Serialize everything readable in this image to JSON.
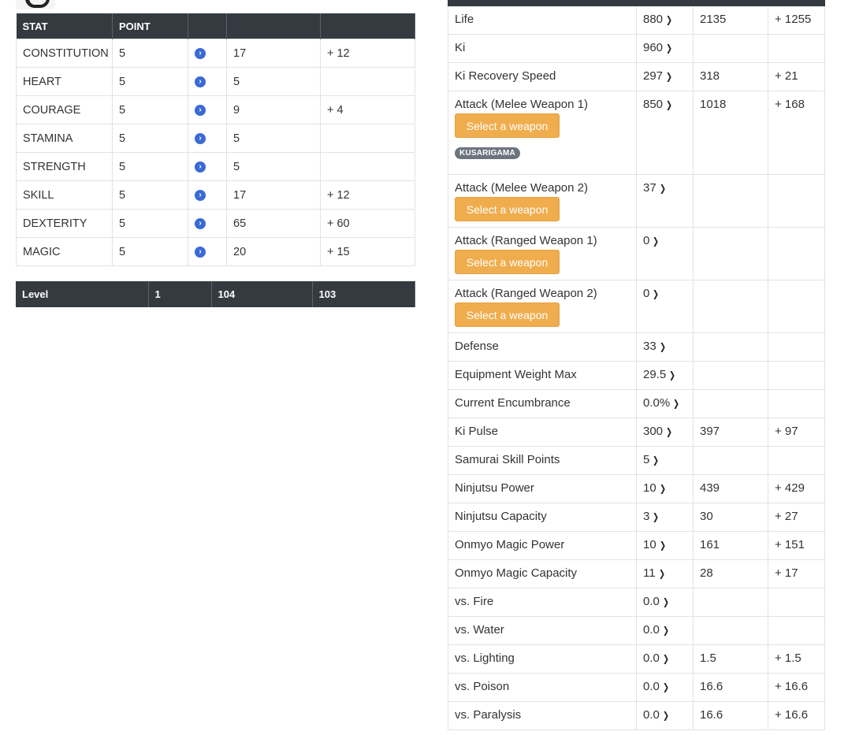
{
  "stats_table": {
    "headers": [
      "STAT",
      "POINT",
      "",
      "",
      ""
    ],
    "rows": [
      {
        "stat": "CONSTITUTION",
        "point": "5",
        "value": "17",
        "bonus": "+ 12"
      },
      {
        "stat": "HEART",
        "point": "5",
        "value": "5",
        "bonus": ""
      },
      {
        "stat": "COURAGE",
        "point": "5",
        "value": "9",
        "bonus": "+ 4"
      },
      {
        "stat": "STAMINA",
        "point": "5",
        "value": "5",
        "bonus": ""
      },
      {
        "stat": "STRENGTH",
        "point": "5",
        "value": "5",
        "bonus": ""
      },
      {
        "stat": "SKILL",
        "point": "5",
        "value": "17",
        "bonus": "+ 12"
      },
      {
        "stat": "DEXTERITY",
        "point": "5",
        "value": "65",
        "bonus": "+ 60"
      },
      {
        "stat": "MAGIC",
        "point": "5",
        "value": "20",
        "bonus": "+ 15"
      }
    ]
  },
  "level_row": {
    "label": "Level",
    "base": "1",
    "current": "104",
    "diff": "103"
  },
  "derived_table": {
    "rows": [
      {
        "label": "Life",
        "base": "880",
        "value": "2135",
        "bonus": "+ 1255"
      },
      {
        "label": "Ki",
        "base": "960",
        "value": "",
        "bonus": ""
      },
      {
        "label": "Ki Recovery Speed",
        "base": "297",
        "value": "318",
        "bonus": "+ 21"
      },
      {
        "label": "Attack (Melee Weapon 1)",
        "base": "850",
        "value": "1018",
        "bonus": "+ 168",
        "button": "Select a weapon",
        "badge": "KUSARIGAMA"
      },
      {
        "label": "Attack (Melee Weapon 2)",
        "base": "37",
        "value": "",
        "bonus": "",
        "button": "Select a weapon"
      },
      {
        "label": "Attack (Ranged Weapon 1)",
        "base": "0",
        "value": "",
        "bonus": "",
        "button": "Select a weapon"
      },
      {
        "label": "Attack (Ranged Weapon 2)",
        "base": "0",
        "value": "",
        "bonus": "",
        "button": "Select a weapon"
      },
      {
        "label": "Defense",
        "base": "33",
        "value": "",
        "bonus": ""
      },
      {
        "label": "Equipment Weight Max",
        "base": "29.5",
        "value": "",
        "bonus": ""
      },
      {
        "label": "Current Encumbrance",
        "base": "0.0%",
        "value": "",
        "bonus": ""
      },
      {
        "label": "Ki Pulse",
        "base": "300",
        "value": "397",
        "bonus": "+ 97"
      },
      {
        "label": "Samurai Skill Points",
        "base": "5",
        "value": "",
        "bonus": ""
      },
      {
        "label": "Ninjutsu Power",
        "base": "10",
        "value": "439",
        "bonus": "+ 429"
      },
      {
        "label": "Ninjutsu Capacity",
        "base": "3",
        "value": "30",
        "bonus": "+ 27"
      },
      {
        "label": "Onmyo Magic Power",
        "base": "10",
        "value": "161",
        "bonus": "+ 151"
      },
      {
        "label": "Onmyo Magic Capacity",
        "base": "11",
        "value": "28",
        "bonus": "+ 17"
      },
      {
        "label": "vs. Fire",
        "base": "0.0",
        "value": "",
        "bonus": ""
      },
      {
        "label": "vs. Water",
        "base": "0.0",
        "value": "",
        "bonus": ""
      },
      {
        "label": "vs. Lighting",
        "base": "0.0",
        "value": "1.5",
        "bonus": "+ 1.5"
      },
      {
        "label": "vs. Poison",
        "base": "0.0",
        "value": "16.6",
        "bonus": "+ 16.6"
      },
      {
        "label": "vs. Paralysis",
        "base": "0.0",
        "value": "16.6",
        "bonus": "+ 16.6"
      }
    ]
  },
  "icons": {
    "stat_arrow": "chevron-right-circle-icon",
    "derived_arrow": "chevron-right-icon"
  },
  "colors": {
    "header_bg": "#343a40",
    "accent_blue": "#3a6ad4",
    "button_orange": "#f0ad4e",
    "badge_gray": "#6c757d"
  }
}
